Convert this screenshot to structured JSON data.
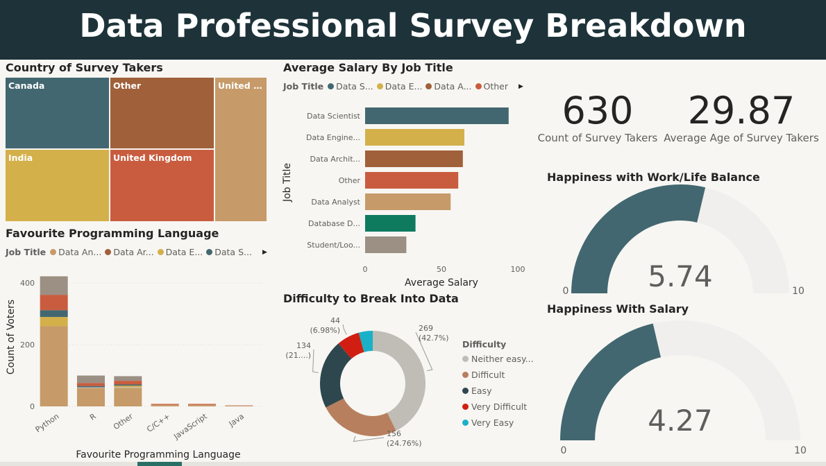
{
  "dashboard": {
    "title": "Data Professional Survey Breakdown"
  },
  "colors": {
    "banner": "#1e3339",
    "background": "#f7f6f2",
    "gauge_fill": "#426770",
    "gauge_track": "#f0efed"
  },
  "treemap": {
    "title": "Country of Survey Takers",
    "tiles": [
      {
        "label": "Canada",
        "color": "#426770"
      },
      {
        "label": "Other",
        "color": "#a0603a"
      },
      {
        "label": "United S...",
        "color": "#c69a69"
      },
      {
        "label": "India",
        "color": "#d4b04b"
      },
      {
        "label": "United Kingdom",
        "color": "#c95c3f"
      }
    ]
  },
  "salary_chart": {
    "title": "Average Salary By Job Title",
    "legend_title": "Job Title",
    "legend": [
      {
        "label": "Data S...",
        "color": "#426770"
      },
      {
        "label": "Data E...",
        "color": "#d4b04b"
      },
      {
        "label": "Data A...",
        "color": "#a0603a"
      },
      {
        "label": "Other",
        "color": "#c95c3f"
      }
    ]
  },
  "language_chart": {
    "title": "Favourite Programming Language",
    "legend_title": "Job Title",
    "legend": [
      {
        "label": "Data An...",
        "color": "#c69a69"
      },
      {
        "label": "Data Ar...",
        "color": "#a0603a"
      },
      {
        "label": "Data E...",
        "color": "#d4b04b"
      },
      {
        "label": "Data S...",
        "color": "#426770"
      }
    ]
  },
  "difficulty_chart": {
    "title": "Difficulty to Break Into Data",
    "legend_title": "Difficulty",
    "legend": [
      {
        "label": "Neither easy...",
        "color": "#c0bcb6"
      },
      {
        "label": "Difficult",
        "color": "#b77f5e"
      },
      {
        "label": "Easy",
        "color": "#2e474e"
      },
      {
        "label": "Very Difficult",
        "color": "#d01f12"
      },
      {
        "label": "Very Easy",
        "color": "#1ab0c8"
      }
    ]
  },
  "kpis": [
    {
      "value": "630",
      "label": "Count of Survey Takers"
    },
    {
      "value": "29.87",
      "label": "Average Age of Survey Takers"
    }
  ],
  "gauges": [
    {
      "title": "Happiness with Work/Life Balance",
      "value": 5.74,
      "value_label": "5.74",
      "min": 0,
      "max": 10,
      "min_label": "0",
      "max_label": "10"
    },
    {
      "title": "Happiness With Salary",
      "value": 4.27,
      "value_label": "4.27",
      "min": 0,
      "max": 10,
      "min_label": "0",
      "max_label": "10"
    }
  ],
  "chart_data": [
    {
      "type": "treemap",
      "title": "Country of Survey Takers",
      "categories": [
        "Canada",
        "Other",
        "United S...",
        "India",
        "United Kingdom"
      ]
    },
    {
      "type": "bar",
      "orientation": "horizontal",
      "title": "Average Salary By Job Title",
      "xlabel": "Average Salary",
      "ylabel": "Job Title",
      "categories": [
        "Data Scientist",
        "Data Engine...",
        "Data Archit...",
        "Other",
        "Data Analyst",
        "Database D...",
        "Student/Loo..."
      ],
      "values": [
        94,
        65,
        64,
        61,
        56,
        33,
        27
      ],
      "colors": [
        "#426770",
        "#d4b04b",
        "#a0603a",
        "#c95c3f",
        "#c69a69",
        "#0f7b5e",
        "#9c8f83"
      ],
      "xlim": [
        0,
        100
      ],
      "xticks": [
        0,
        50,
        100
      ]
    },
    {
      "type": "bar",
      "stacked": true,
      "title": "Favourite Programming Language",
      "xlabel": "Favourite Programming Language",
      "ylabel": "Count of Voters",
      "categories": [
        "Python",
        "R",
        "Other",
        "C/C++",
        "JavaScript",
        "Java"
      ],
      "ylim": [
        0,
        450
      ],
      "yticks": [
        0,
        200,
        400
      ],
      "series": [
        {
          "name": "Data An...",
          "color": "#c69a69",
          "values": [
            260,
            60,
            60,
            5,
            5,
            2
          ]
        },
        {
          "name": "",
          "color": "#c4c1bb",
          "values": [
            0,
            2,
            2,
            0,
            0,
            0
          ]
        },
        {
          "name": "Data E...",
          "color": "#d4b04b",
          "values": [
            30,
            0,
            5,
            0,
            0,
            0
          ]
        },
        {
          "name": "Data S...",
          "color": "#426770",
          "values": [
            22,
            4,
            4,
            0,
            0,
            0
          ]
        },
        {
          "name": "",
          "color": "#c95c3f",
          "values": [
            50,
            10,
            12,
            3,
            3,
            1
          ]
        },
        {
          "name": "",
          "color": "#9c8f83",
          "values": [
            60,
            24,
            15,
            0,
            0,
            0
          ]
        }
      ]
    },
    {
      "type": "pie",
      "donut": true,
      "title": "Difficulty to Break Into Data",
      "labels": [
        "Neither easy...",
        "Difficult",
        "Easy",
        "Very Difficult",
        "Very Easy"
      ],
      "values": [
        269,
        156,
        134,
        44,
        27
      ],
      "value_labels": [
        "269",
        "156",
        "134",
        "44",
        ""
      ],
      "percent_labels": [
        "(42.7%)",
        "(24.76%)",
        "(21....)",
        "(6.98%)",
        ""
      ]
    }
  ]
}
